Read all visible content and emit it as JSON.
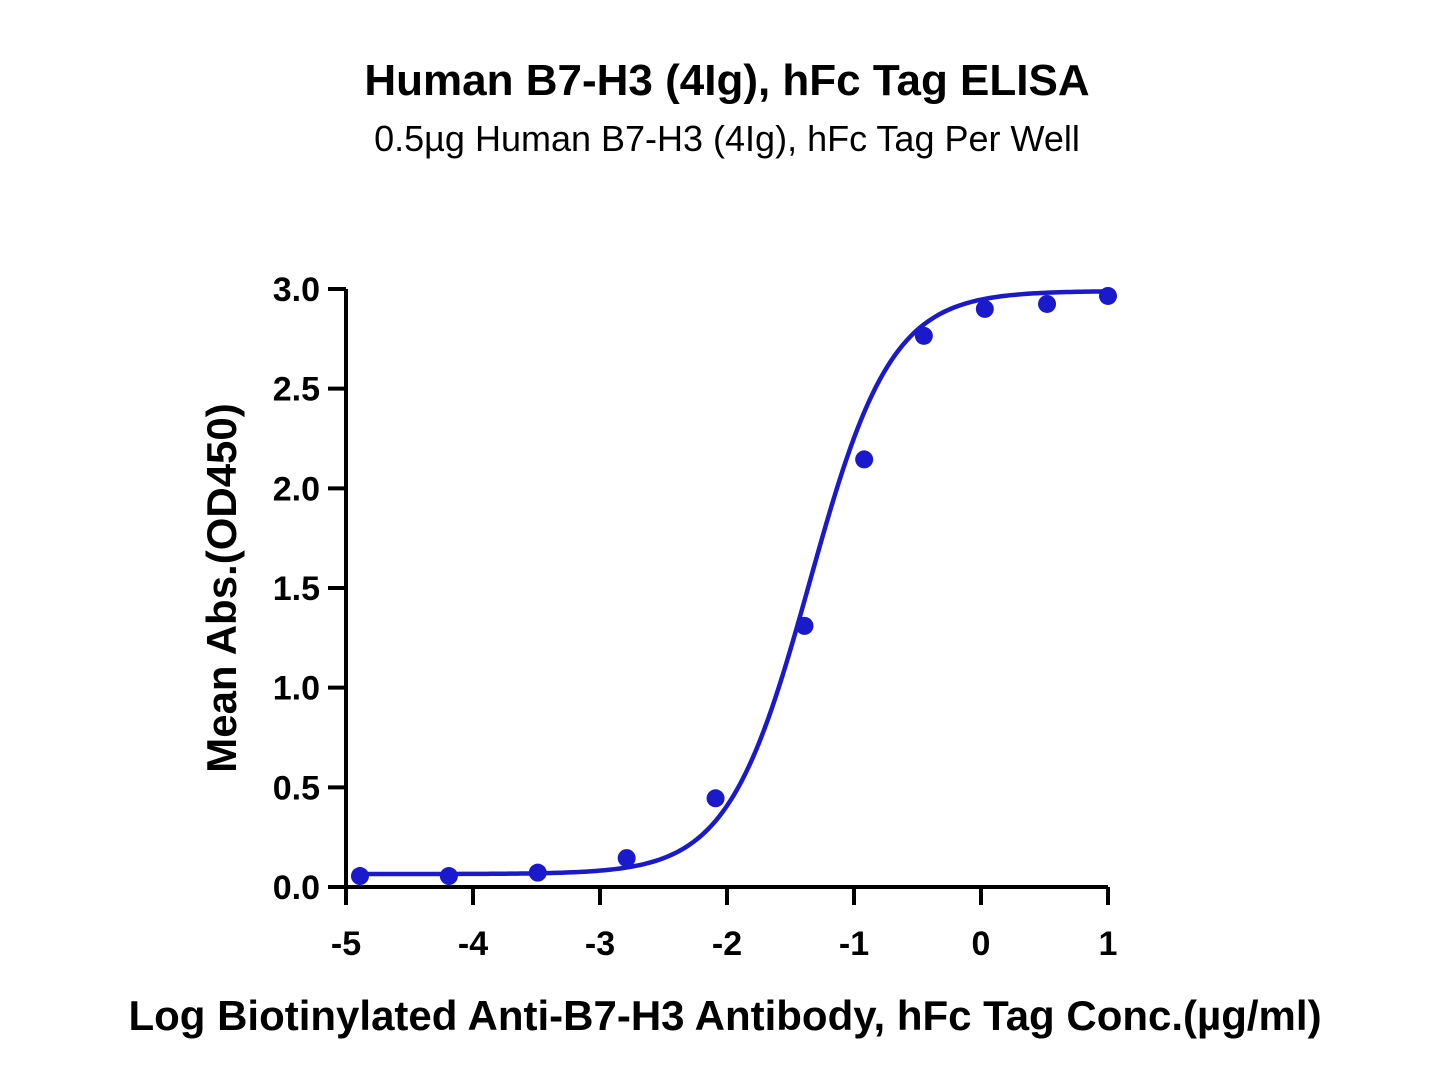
{
  "chart_data": {
    "type": "scatter",
    "title": "Human B7-H3 (4Ig), hFc Tag ELISA",
    "subtitle": "0.5µg Human B7-H3 (4Ig), hFc Tag Per Well",
    "xlabel": "Log Biotinylated Anti-B7-H3 Antibody, hFc Tag Conc.(µg/ml)",
    "ylabel": "Mean Abs.(OD450)",
    "xlim": [
      -5,
      1
    ],
    "ylim": [
      0,
      3
    ],
    "x_ticks": [
      -5,
      -4,
      -3,
      -2,
      -1,
      0,
      1
    ],
    "x_tick_labels": [
      "-5",
      "-4",
      "-3",
      "-2",
      "-1",
      "0",
      "1"
    ],
    "y_ticks": [
      0,
      0.5,
      1,
      1.5,
      2,
      2.5,
      3
    ],
    "y_tick_labels": [
      "0.0",
      "0.5",
      "1.0",
      "1.5",
      "2.0",
      "2.5",
      "3.0"
    ],
    "grid": false,
    "color": "#1a1acc",
    "series": [
      {
        "x": [
          -4.89,
          -4.19,
          -3.49,
          -2.79,
          -2.09,
          -1.39,
          -0.92,
          -0.45,
          0.03,
          0.52,
          1.0
        ],
        "y": [
          0.055,
          0.055,
          0.072,
          0.145,
          0.445,
          1.31,
          2.145,
          2.765,
          2.9,
          2.925,
          2.965
        ]
      }
    ],
    "fit_curve": {
      "model": "4PL",
      "bottom": 0.065,
      "top": 2.99,
      "logEC50": -1.35,
      "hill": 1.35
    }
  }
}
